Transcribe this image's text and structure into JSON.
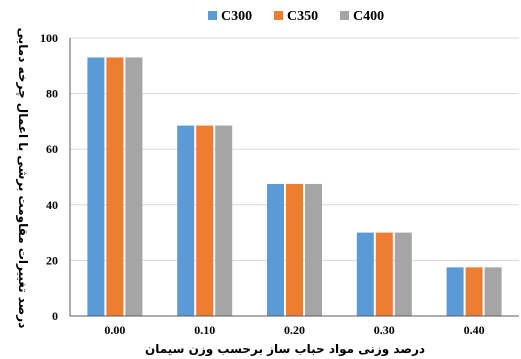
{
  "chart_data": {
    "type": "bar",
    "title": "",
    "xlabel": "درصد وزنی  مواد حباب ساز برحسب وزن سیمان",
    "ylabel": "درصد تغییرات مقاومت برشی با اعمال چرخه دمایی",
    "categories": [
      "0.00",
      "0.10",
      "0.20",
      "0.30",
      "0.40"
    ],
    "series": [
      {
        "name": "C300",
        "color": "#5b9bd5",
        "values": [
          93,
          68.5,
          47.5,
          30,
          17.5
        ]
      },
      {
        "name": "C350",
        "color": "#ed7d31",
        "values": [
          93,
          68.5,
          47.5,
          30,
          17.5
        ]
      },
      {
        "name": "C400",
        "color": "#a5a5a5",
        "values": [
          93,
          68.5,
          47.5,
          30,
          17.5
        ]
      }
    ],
    "ylim": [
      0,
      100
    ],
    "yticks": [
      0,
      20,
      40,
      60,
      80,
      100
    ],
    "grid": true,
    "legend_position": "top"
  }
}
